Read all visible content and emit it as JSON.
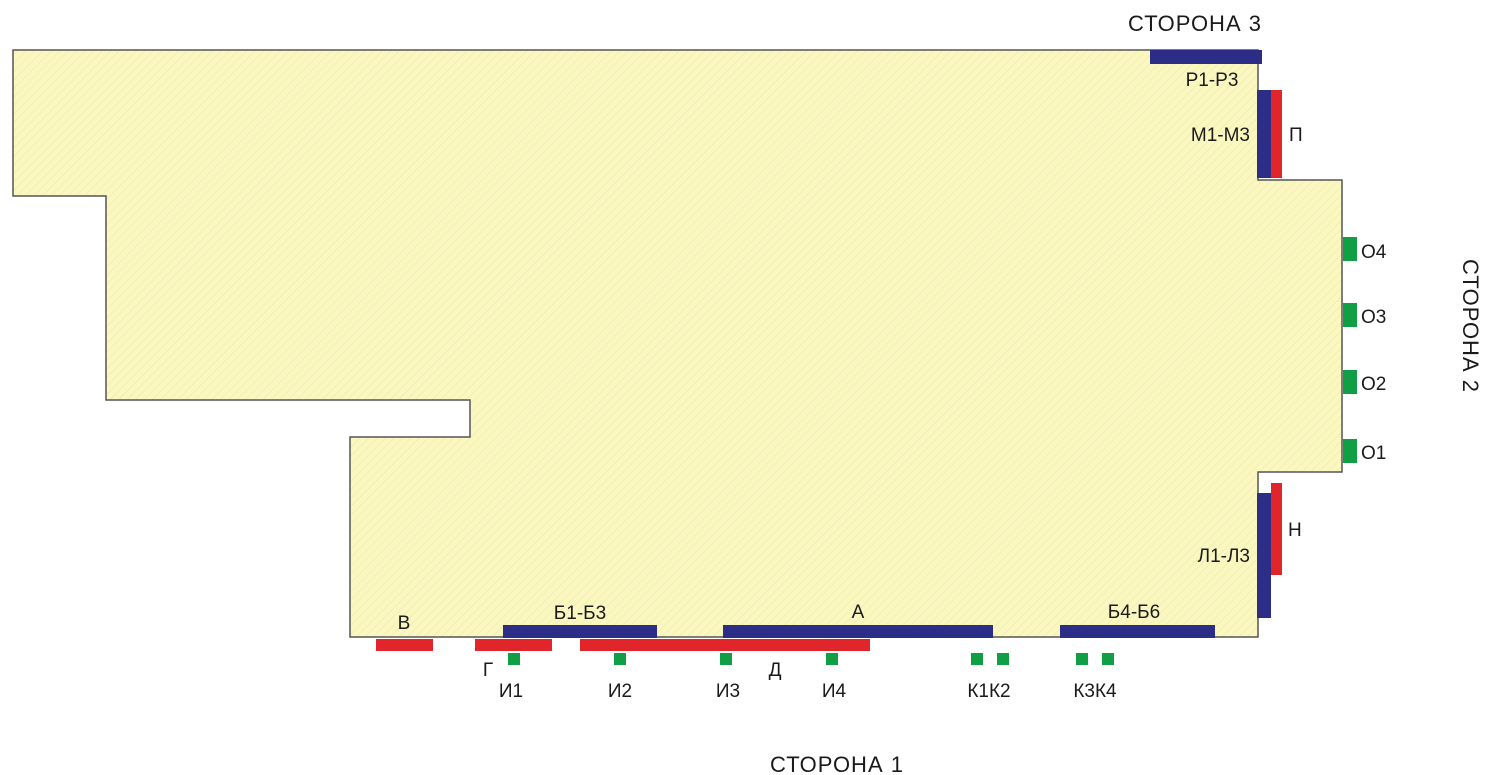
{
  "colors": {
    "floor_fill": "#fbf7c1",
    "outline": "#555555",
    "blue": "#2c2d86",
    "red": "#e0262b",
    "green": "#119f45",
    "text": "#1a1a1a"
  },
  "sides": {
    "side1": "СТОРОНА 1",
    "side2": "СТОРОНА 2",
    "side3": "СТОРОНА 3"
  },
  "labels": {
    "A": "А",
    "B1_B3": "Б1-Б3",
    "B4_B6": "Б4-Б6",
    "V": "В",
    "G": "Г",
    "D": "Д",
    "I1": "И1",
    "I2": "И2",
    "I3": "И3",
    "I4": "И4",
    "K1K2": "К1К2",
    "K3K4": "К3К4",
    "L1_L3": "Л1-Л3",
    "M1_M3": "М1-М3",
    "N": "Н",
    "P": "П",
    "R1_R3": "Р1-Р3",
    "O1": "О1",
    "O2": "О2",
    "O3": "О3",
    "O4": "О4"
  },
  "icons": {
    "blue_segment": "blue-wall-section",
    "red_segment": "red-wall-section",
    "green_square": "green-marker"
  }
}
